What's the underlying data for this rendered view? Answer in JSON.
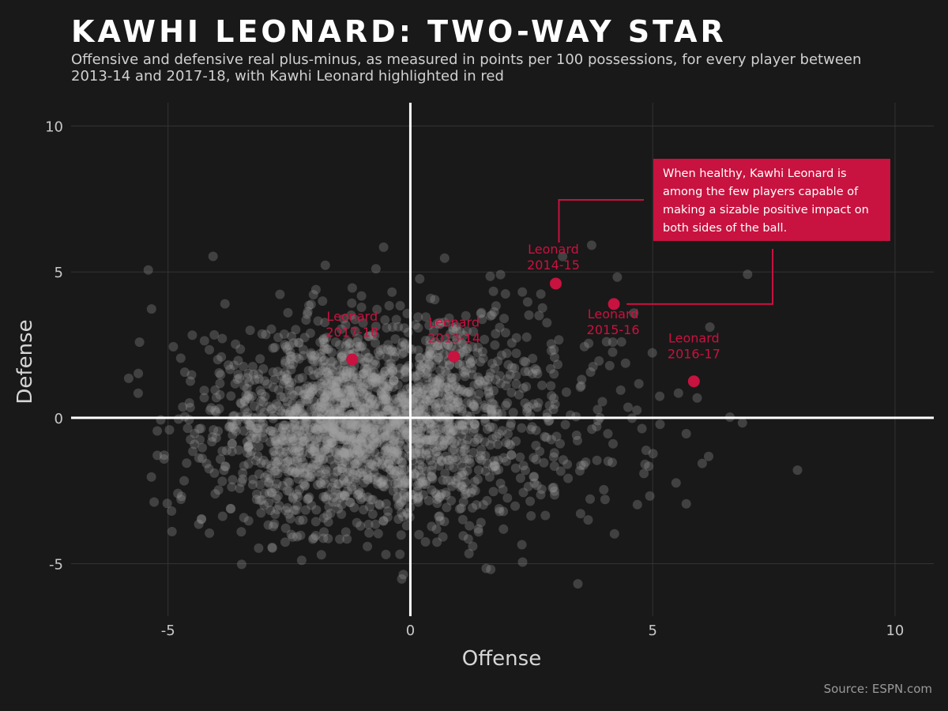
{
  "chart_data": {
    "type": "scatter",
    "title": "Kawhi Leonard: Two-way star",
    "subtitle": "Offensive and defensive real plus-minus, as measured in points per 100 possessions, for every player between 2013-14 and 2017-18, with Kawhi Leonard highlighted in red",
    "xlabel": "Offense",
    "ylabel": "Defense",
    "xlim": [
      -7,
      10.8
    ],
    "ylim": [
      -6.8,
      10.8
    ],
    "x_ticks": [
      -5,
      0,
      5,
      10
    ],
    "y_ticks": [
      -5,
      0,
      5,
      10
    ],
    "x_tick_labels": [
      "-5",
      "0",
      "5",
      "10"
    ],
    "y_tick_labels": [
      "-5",
      "0",
      "5",
      "10"
    ],
    "grid": true,
    "background_points_note_count": 2200,
    "highlight": {
      "name": "Kawhi Leonard",
      "color": "#c8123f",
      "points": [
        {
          "label": "Leonard\n2013-14",
          "x": 0.9,
          "y": 2.1
        },
        {
          "label": "Leonard\n2014-15",
          "x": 3.0,
          "y": 4.6
        },
        {
          "label": "Leonard\n2015-16",
          "x": 4.2,
          "y": 3.9
        },
        {
          "label": "Leonard\n2016-17",
          "x": 5.85,
          "y": 1.25
        },
        {
          "label": "Leonard\n2017-18",
          "x": -1.2,
          "y": 2.0
        }
      ]
    },
    "annotation": {
      "text": "When healthy, Kawhi Leonard is among the few players capable of making a sizable positive impact on both sides of the ball.",
      "lines": [
        "When healthy, Kawhi Leonard is",
        "among the few players capable of",
        "making a sizable positive impact on",
        "both sides of the ball."
      ],
      "background": "#c8123f",
      "text_color": "#ffffff"
    },
    "colors": {
      "background": "#191919",
      "points": "#9e9e9e",
      "axis": "#ffffff",
      "grid": "#333333",
      "tick_text": "#c8c8c8",
      "label_text": "#d6d6d6"
    }
  },
  "source": "Source: ESPN.com"
}
